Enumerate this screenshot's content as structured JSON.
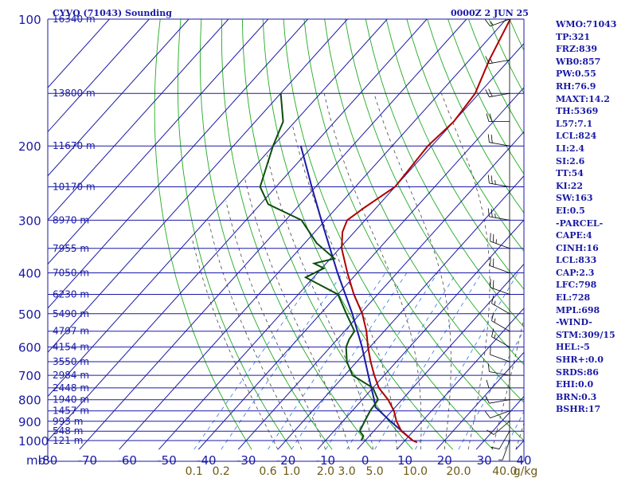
{
  "header": {
    "station": "CYVQ (71043) Sounding",
    "time": "0000Z  2 JUN 25"
  },
  "chart_data": {
    "type": "skew-t log-p sounding",
    "pressure_unit_label": "mb",
    "pressure_levels": [
      100,
      200,
      300,
      400,
      500,
      600,
      700,
      800,
      900,
      1000
    ],
    "pressure_range": [
      100,
      1050
    ],
    "temperature_ticks": [
      -80,
      -70,
      -60,
      -50,
      -40,
      -30,
      -20,
      -10,
      0,
      10,
      20,
      30,
      40
    ],
    "temperature_range": [
      -80,
      40
    ],
    "height_labels": [
      {
        "p": 100,
        "label": "16340 m"
      },
      {
        "p": 150,
        "label": "13800 m"
      },
      {
        "p": 200,
        "label": "11670 m"
      },
      {
        "p": 250,
        "label": "10170 m"
      },
      {
        "p": 300,
        "label": "8970 m"
      },
      {
        "p": 350,
        "label": "7955 m"
      },
      {
        "p": 400,
        "label": "7050 m"
      },
      {
        "p": 450,
        "label": "6230 m"
      },
      {
        "p": 500,
        "label": "5490 m"
      },
      {
        "p": 550,
        "label": "4797 m"
      },
      {
        "p": 600,
        "label": "4154 m"
      },
      {
        "p": 650,
        "label": "3550 m"
      },
      {
        "p": 700,
        "label": "2984 m"
      },
      {
        "p": 750,
        "label": "2448 m"
      },
      {
        "p": 800,
        "label": "1940 m"
      },
      {
        "p": 850,
        "label": "1457 m"
      },
      {
        "p": 900,
        "label": "993 m"
      },
      {
        "p": 950,
        "label": "548 m"
      },
      {
        "p": 1000,
        "label": "121 m"
      }
    ],
    "mixing_ratio_labels": [
      "0.1",
      "0.2",
      "0.6",
      "1.0",
      "2.0",
      "3.0",
      "5.0",
      "10.0",
      "20.0",
      "40.0"
    ],
    "mixing_ratio_values": [
      0.1,
      0.2,
      0.6,
      1.0,
      2.0,
      3.0,
      5.0,
      10.0,
      20.0,
      40.0
    ],
    "mixing_ratio_unit": "g/kg",
    "temperature_profile": [
      {
        "p": 1010,
        "t": 13.5
      },
      {
        "p": 1000,
        "t": 12.0
      },
      {
        "p": 950,
        "t": 7.0
      },
      {
        "p": 900,
        "t": 3.5
      },
      {
        "p": 850,
        "t": 0.5
      },
      {
        "p": 800,
        "t": -3.5
      },
      {
        "p": 750,
        "t": -8.5
      },
      {
        "p": 700,
        "t": -12.5
      },
      {
        "p": 650,
        "t": -16.5
      },
      {
        "p": 600,
        "t": -20.5
      },
      {
        "p": 550,
        "t": -24.5
      },
      {
        "p": 500,
        "t": -29.5
      },
      {
        "p": 450,
        "t": -36.0
      },
      {
        "p": 400,
        "t": -42.5
      },
      {
        "p": 350,
        "t": -49.5
      },
      {
        "p": 320,
        "t": -53.0
      },
      {
        "p": 300,
        "t": -54.5
      },
      {
        "p": 280,
        "t": -53.0
      },
      {
        "p": 250,
        "t": -50.0
      },
      {
        "p": 200,
        "t": -51.0
      },
      {
        "p": 175,
        "t": -50.0
      },
      {
        "p": 150,
        "t": -51.0
      },
      {
        "p": 125,
        "t": -55.0
      },
      {
        "p": 100,
        "t": -59.0
      }
    ],
    "dewpoint_profile": [
      {
        "p": 1000,
        "t": -1.0
      },
      {
        "p": 975,
        "t": -1.5
      },
      {
        "p": 950,
        "t": -3.5
      },
      {
        "p": 900,
        "t": -4.5
      },
      {
        "p": 850,
        "t": -5.5
      },
      {
        "p": 800,
        "t": -6.0
      },
      {
        "p": 750,
        "t": -10.0
      },
      {
        "p": 700,
        "t": -18.0
      },
      {
        "p": 650,
        "t": -22.5
      },
      {
        "p": 600,
        "t": -26.0
      },
      {
        "p": 575,
        "t": -27.0
      },
      {
        "p": 550,
        "t": -27.5
      },
      {
        "p": 500,
        "t": -33.5
      },
      {
        "p": 450,
        "t": -40.0
      },
      {
        "p": 410,
        "t": -52.0
      },
      {
        "p": 390,
        "t": -49.5
      },
      {
        "p": 380,
        "t": -53.0
      },
      {
        "p": 370,
        "t": -49.0
      },
      {
        "p": 340,
        "t": -57.0
      },
      {
        "p": 300,
        "t": -66.0
      },
      {
        "p": 275,
        "t": -78.0
      },
      {
        "p": 250,
        "t": -84.0
      },
      {
        "p": 200,
        "t": -90.0
      },
      {
        "p": 175,
        "t": -93.0
      },
      {
        "p": 150,
        "t": -100.0
      }
    ],
    "parcel_path": [
      {
        "p": 1000,
        "t": 12.0
      },
      {
        "p": 900,
        "t": 2.0
      },
      {
        "p": 833,
        "t": -5.0
      },
      {
        "p": 800,
        "t": -7.0
      },
      {
        "p": 700,
        "t": -14.0
      },
      {
        "p": 600,
        "t": -22.0
      },
      {
        "p": 500,
        "t": -32.0
      },
      {
        "p": 400,
        "t": -45.0
      },
      {
        "p": 300,
        "t": -61.0
      },
      {
        "p": 250,
        "t": -71.0
      },
      {
        "p": 200,
        "t": -83.0
      }
    ],
    "wind_barbs": [
      {
        "p": 1000,
        "dir": 200,
        "spd": 5
      },
      {
        "p": 950,
        "dir": 210,
        "spd": 10
      },
      {
        "p": 900,
        "dir": 230,
        "spd": 10
      },
      {
        "p": 850,
        "dir": 250,
        "spd": 10
      },
      {
        "p": 800,
        "dir": 260,
        "spd": 10
      },
      {
        "p": 750,
        "dir": 270,
        "spd": 10
      },
      {
        "p": 700,
        "dir": 280,
        "spd": 10
      },
      {
        "p": 650,
        "dir": 290,
        "spd": 10
      },
      {
        "p": 600,
        "dir": 300,
        "spd": 15
      },
      {
        "p": 550,
        "dir": 300,
        "spd": 15
      },
      {
        "p": 500,
        "dir": 300,
        "spd": 15
      },
      {
        "p": 450,
        "dir": 290,
        "spd": 20
      },
      {
        "p": 400,
        "dir": 290,
        "spd": 20
      },
      {
        "p": 350,
        "dir": 290,
        "spd": 25
      },
      {
        "p": 300,
        "dir": 280,
        "spd": 25
      },
      {
        "p": 250,
        "dir": 280,
        "spd": 25
      },
      {
        "p": 200,
        "dir": 280,
        "spd": 20
      },
      {
        "p": 175,
        "dir": 270,
        "spd": 20
      },
      {
        "p": 150,
        "dir": 260,
        "spd": 20
      },
      {
        "p": 125,
        "dir": 260,
        "spd": 15
      },
      {
        "p": 100,
        "dir": 250,
        "spd": 15
      }
    ],
    "grid": true,
    "colors": {
      "frame": "#1a1aa6",
      "temperature": "#b00000",
      "dewpoint": "#0d4d0d",
      "parcel": "#1a1aa6",
      "dry_adiabat": "#22aa22",
      "moist_adiabat": "#444444",
      "mixing_ratio": "#3377dd",
      "mixing_label": "#6b5a16"
    }
  },
  "indices": [
    "WMO:71043",
    "TP:321",
    "FRZ:839",
    "WB0:857",
    "PW:0.55",
    "RH:76.9",
    "MAXT:14.2",
    "TH:5369",
    "L57:7.1",
    "LCL:824",
    "LI:2.4",
    "SI:2.6",
    "TT:54",
    "KI:22",
    "SW:163",
    "EI:0.5",
    "-PARCEL-",
    "CAPE:4",
    "CINH:16",
    "LCL:833",
    "CAP:2.3",
    "LFC:798",
    "EL:728",
    "MPL:698",
    "-WIND-",
    "STM:309/15",
    "HEL:-5",
    "SHR+:0.0",
    "SRDS:86",
    "EHI:0.0",
    "BRN:0.3",
    "BSHR:17"
  ]
}
